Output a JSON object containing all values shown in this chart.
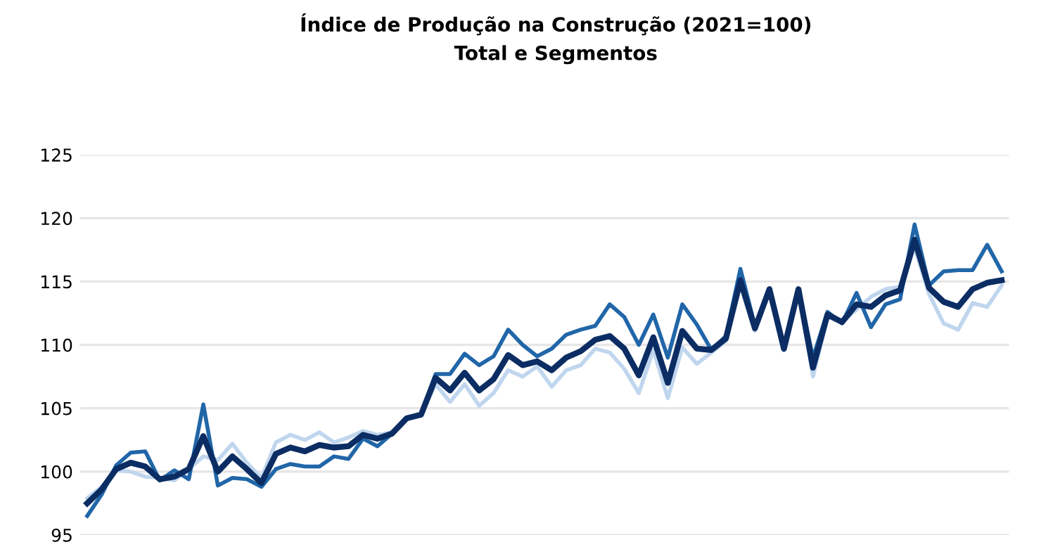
{
  "chart_data": {
    "type": "line",
    "title": "Índice de Produção na Construção (2021=100)",
    "subtitle": "Total e Segmentos",
    "categories": [
      null,
      null,
      null,
      null,
      null,
      null,
      null,
      null,
      null,
      null,
      null,
      null,
      null,
      null,
      null,
      null,
      null,
      null,
      null,
      null,
      null,
      null,
      null,
      null,
      null,
      null,
      null,
      null,
      null,
      null,
      null,
      null,
      null,
      null,
      null,
      null,
      null,
      null,
      null,
      null,
      null,
      null,
      null,
      null,
      null,
      null,
      null,
      null,
      null,
      null,
      null,
      null,
      null,
      null,
      null,
      null,
      null,
      null,
      null,
      null,
      null,
      null,
      null,
      null
    ],
    "series": [
      {
        "color": "#c0d6ee",
        "values": [
          97.9,
          98.8,
          100.1,
          100.0,
          99.6,
          99.5,
          99.3,
          100.2,
          101.2,
          100.9,
          102.2,
          100.7,
          99.5,
          102.3,
          102.9,
          102.5,
          103.1,
          102.3,
          102.7,
          103.2,
          102.9,
          103.1,
          104.2,
          104.5,
          106.9,
          105.5,
          106.9,
          105.2,
          106.2,
          108.0,
          107.5,
          108.3,
          106.7,
          108.0,
          108.4,
          109.7,
          109.4,
          108.1,
          106.2,
          109.6,
          105.8,
          109.8,
          108.5,
          109.4,
          110.3,
          114.7,
          111.1,
          114.4,
          109.8,
          114.4,
          107.5,
          112.2,
          111.8,
          112.8,
          113.8,
          114.4,
          114.6,
          117.7,
          114.0,
          111.7,
          111.2,
          113.3,
          113.0,
          114.7
        ]
      },
      {
        "color": "#2166a8",
        "values": [
          96.5,
          98.2,
          100.5,
          101.5,
          101.6,
          99.3,
          100.1,
          99.4,
          105.3,
          98.9,
          99.5,
          99.4,
          98.8,
          100.2,
          100.6,
          100.4,
          100.4,
          101.2,
          101.0,
          102.6,
          102.0,
          103.0,
          104.2,
          104.5,
          107.7,
          107.7,
          109.3,
          108.4,
          109.1,
          111.2,
          110.0,
          109.1,
          109.7,
          110.8,
          111.2,
          111.5,
          113.2,
          112.2,
          110.0,
          112.4,
          109.0,
          113.2,
          111.6,
          109.6,
          110.7,
          116.0,
          111.5,
          114.4,
          109.6,
          114.4,
          109.0,
          112.6,
          111.7,
          114.1,
          111.4,
          113.2,
          113.6,
          119.5,
          114.7,
          115.8,
          115.9,
          115.9,
          117.9,
          115.8
        ]
      },
      {
        "color": "#0b2d63",
        "values": [
          97.5,
          98.6,
          100.2,
          100.7,
          100.4,
          99.4,
          99.6,
          100.2,
          102.8,
          100.0,
          101.2,
          100.2,
          99.1,
          101.4,
          101.9,
          101.6,
          102.1,
          101.9,
          102.0,
          102.9,
          102.6,
          103.0,
          104.2,
          104.5,
          107.4,
          106.4,
          107.8,
          106.4,
          107.3,
          109.2,
          108.4,
          108.7,
          108.0,
          109.0,
          109.5,
          110.4,
          110.7,
          109.7,
          107.6,
          110.6,
          107.0,
          111.1,
          109.7,
          109.6,
          110.5,
          115.1,
          111.3,
          114.4,
          109.7,
          114.4,
          108.2,
          112.4,
          111.8,
          113.2,
          113.0,
          113.9,
          114.3,
          118.3,
          114.5,
          113.4,
          113.0,
          114.4,
          114.9,
          115.1
        ]
      }
    ],
    "ylim": [
      95,
      125
    ],
    "yticks": [
      95,
      100,
      105,
      110,
      115,
      120,
      125
    ],
    "grid": "y",
    "tick_labels": "y"
  }
}
